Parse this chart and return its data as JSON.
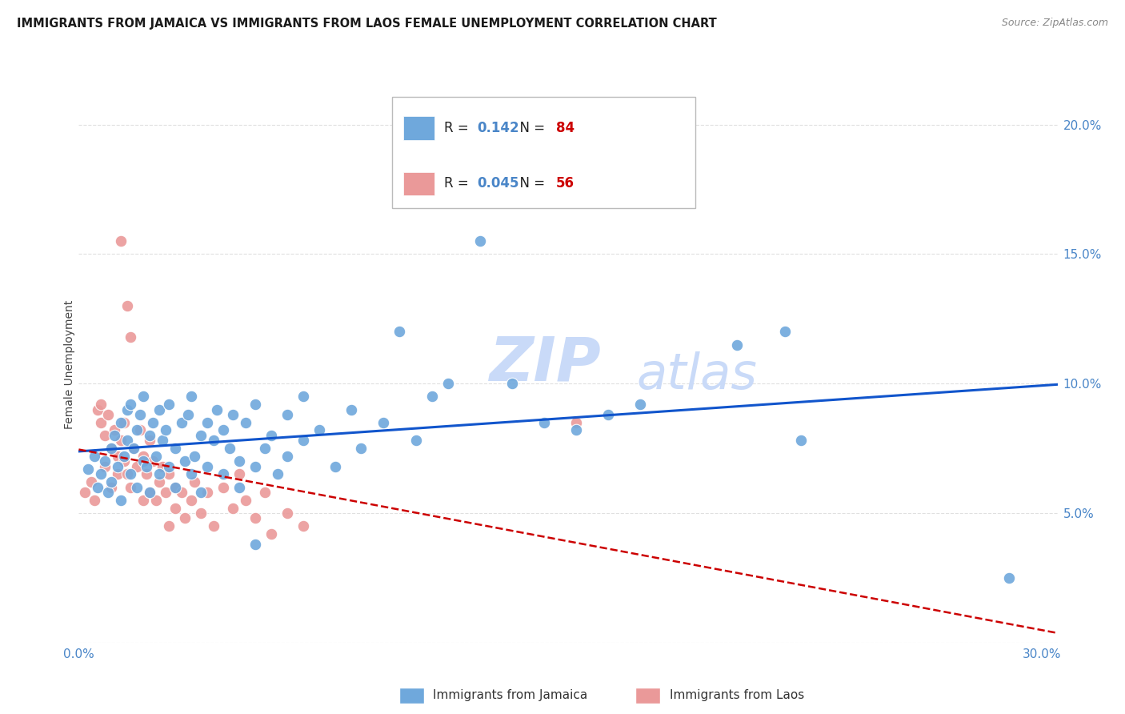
{
  "title": "IMMIGRANTS FROM JAMAICA VS IMMIGRANTS FROM LAOS FEMALE UNEMPLOYMENT CORRELATION CHART",
  "source": "Source: ZipAtlas.com",
  "ylabel": "Female Unemployment",
  "xlim": [
    0.0,
    0.305
  ],
  "ylim": [
    0.0,
    0.215
  ],
  "jamaica_color": "#6fa8dc",
  "laos_color": "#ea9999",
  "jamaica_R": "0.142",
  "jamaica_N": "84",
  "laos_R": "0.045",
  "laos_N": "56",
  "jamaica_scatter": [
    [
      0.003,
      0.067
    ],
    [
      0.005,
      0.072
    ],
    [
      0.006,
      0.06
    ],
    [
      0.007,
      0.065
    ],
    [
      0.008,
      0.07
    ],
    [
      0.009,
      0.058
    ],
    [
      0.01,
      0.075
    ],
    [
      0.01,
      0.062
    ],
    [
      0.011,
      0.08
    ],
    [
      0.012,
      0.068
    ],
    [
      0.013,
      0.055
    ],
    [
      0.013,
      0.085
    ],
    [
      0.014,
      0.072
    ],
    [
      0.015,
      0.078
    ],
    [
      0.015,
      0.09
    ],
    [
      0.016,
      0.065
    ],
    [
      0.016,
      0.092
    ],
    [
      0.017,
      0.075
    ],
    [
      0.018,
      0.082
    ],
    [
      0.018,
      0.06
    ],
    [
      0.019,
      0.088
    ],
    [
      0.02,
      0.07
    ],
    [
      0.02,
      0.095
    ],
    [
      0.021,
      0.068
    ],
    [
      0.022,
      0.08
    ],
    [
      0.022,
      0.058
    ],
    [
      0.023,
      0.085
    ],
    [
      0.024,
      0.072
    ],
    [
      0.025,
      0.09
    ],
    [
      0.025,
      0.065
    ],
    [
      0.026,
      0.078
    ],
    [
      0.027,
      0.082
    ],
    [
      0.028,
      0.068
    ],
    [
      0.028,
      0.092
    ],
    [
      0.03,
      0.075
    ],
    [
      0.03,
      0.06
    ],
    [
      0.032,
      0.085
    ],
    [
      0.033,
      0.07
    ],
    [
      0.034,
      0.088
    ],
    [
      0.035,
      0.065
    ],
    [
      0.035,
      0.095
    ],
    [
      0.036,
      0.072
    ],
    [
      0.038,
      0.08
    ],
    [
      0.038,
      0.058
    ],
    [
      0.04,
      0.085
    ],
    [
      0.04,
      0.068
    ],
    [
      0.042,
      0.078
    ],
    [
      0.043,
      0.09
    ],
    [
      0.045,
      0.065
    ],
    [
      0.045,
      0.082
    ],
    [
      0.047,
      0.075
    ],
    [
      0.048,
      0.088
    ],
    [
      0.05,
      0.07
    ],
    [
      0.05,
      0.06
    ],
    [
      0.052,
      0.085
    ],
    [
      0.055,
      0.068
    ],
    [
      0.055,
      0.092
    ],
    [
      0.058,
      0.075
    ],
    [
      0.06,
      0.08
    ],
    [
      0.062,
      0.065
    ],
    [
      0.065,
      0.088
    ],
    [
      0.065,
      0.072
    ],
    [
      0.07,
      0.078
    ],
    [
      0.07,
      0.095
    ],
    [
      0.075,
      0.082
    ],
    [
      0.08,
      0.068
    ],
    [
      0.085,
      0.09
    ],
    [
      0.088,
      0.075
    ],
    [
      0.095,
      0.085
    ],
    [
      0.1,
      0.12
    ],
    [
      0.105,
      0.078
    ],
    [
      0.11,
      0.095
    ],
    [
      0.115,
      0.1
    ],
    [
      0.125,
      0.155
    ],
    [
      0.135,
      0.1
    ],
    [
      0.145,
      0.085
    ],
    [
      0.155,
      0.082
    ],
    [
      0.165,
      0.088
    ],
    [
      0.175,
      0.092
    ],
    [
      0.205,
      0.115
    ],
    [
      0.22,
      0.12
    ],
    [
      0.225,
      0.078
    ],
    [
      0.29,
      0.025
    ],
    [
      0.055,
      0.038
    ]
  ],
  "laos_scatter": [
    [
      0.002,
      0.058
    ],
    [
      0.004,
      0.062
    ],
    [
      0.005,
      0.055
    ],
    [
      0.006,
      0.09
    ],
    [
      0.007,
      0.085
    ],
    [
      0.007,
      0.092
    ],
    [
      0.008,
      0.08
    ],
    [
      0.008,
      0.068
    ],
    [
      0.009,
      0.088
    ],
    [
      0.01,
      0.075
    ],
    [
      0.01,
      0.06
    ],
    [
      0.011,
      0.082
    ],
    [
      0.012,
      0.072
    ],
    [
      0.012,
      0.065
    ],
    [
      0.013,
      0.078
    ],
    [
      0.013,
      0.155
    ],
    [
      0.014,
      0.07
    ],
    [
      0.014,
      0.085
    ],
    [
      0.015,
      0.065
    ],
    [
      0.015,
      0.13
    ],
    [
      0.016,
      0.118
    ],
    [
      0.016,
      0.06
    ],
    [
      0.017,
      0.075
    ],
    [
      0.018,
      0.068
    ],
    [
      0.019,
      0.082
    ],
    [
      0.02,
      0.072
    ],
    [
      0.02,
      0.055
    ],
    [
      0.021,
      0.065
    ],
    [
      0.022,
      0.078
    ],
    [
      0.022,
      0.058
    ],
    [
      0.023,
      0.07
    ],
    [
      0.024,
      0.055
    ],
    [
      0.025,
      0.062
    ],
    [
      0.026,
      0.068
    ],
    [
      0.027,
      0.058
    ],
    [
      0.028,
      0.065
    ],
    [
      0.028,
      0.045
    ],
    [
      0.03,
      0.06
    ],
    [
      0.03,
      0.052
    ],
    [
      0.032,
      0.058
    ],
    [
      0.033,
      0.048
    ],
    [
      0.035,
      0.055
    ],
    [
      0.036,
      0.062
    ],
    [
      0.038,
      0.05
    ],
    [
      0.04,
      0.058
    ],
    [
      0.042,
      0.045
    ],
    [
      0.045,
      0.06
    ],
    [
      0.048,
      0.052
    ],
    [
      0.05,
      0.065
    ],
    [
      0.052,
      0.055
    ],
    [
      0.055,
      0.048
    ],
    [
      0.058,
      0.058
    ],
    [
      0.06,
      0.042
    ],
    [
      0.065,
      0.05
    ],
    [
      0.07,
      0.045
    ],
    [
      0.155,
      0.085
    ]
  ],
  "jamaica_line_color": "#1155cc",
  "laos_line_color": "#cc0000",
  "laos_line_style": "--",
  "watermark_line1": "ZIP",
  "watermark_line2": "atlas",
  "watermark_color": "#c9daf8",
  "legend_jamaica_label": "Immigrants from Jamaica",
  "legend_laos_label": "Immigrants from Laos",
  "bg_color": "#ffffff",
  "grid_color": "#e0e0e0",
  "right_axis_color": "#4a86c8",
  "x_tick_vals": [
    0.0,
    0.05,
    0.1,
    0.15,
    0.2,
    0.25,
    0.3
  ],
  "x_tick_labels": [
    "0.0%",
    "",
    "",
    "",
    "",
    "",
    "30.0%"
  ],
  "y_tick_vals": [
    0.0,
    0.05,
    0.1,
    0.15,
    0.2
  ],
  "y_tick_labels": [
    "",
    "5.0%",
    "10.0%",
    "15.0%",
    "20.0%"
  ]
}
